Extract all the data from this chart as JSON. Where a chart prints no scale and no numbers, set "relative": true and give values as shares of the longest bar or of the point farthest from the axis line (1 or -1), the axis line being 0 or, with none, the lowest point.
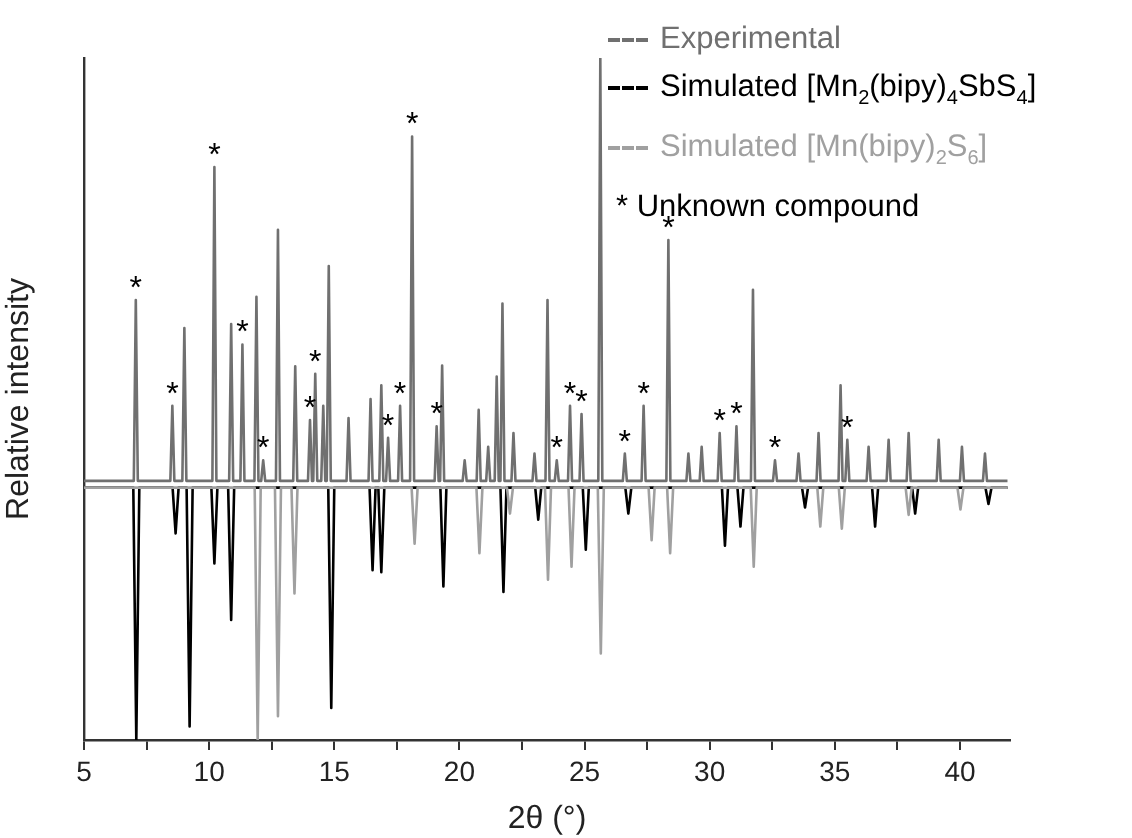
{
  "chart_data": {
    "type": "line",
    "relative": true,
    "xlabel": "2θ (°)",
    "ylabel": "Relative intensity",
    "xlim": [
      5,
      42
    ],
    "xticks": [
      5,
      {
        "value": 7.5,
        "label": null
      },
      10,
      {
        "value": 12.5,
        "label": null
      },
      15,
      {
        "value": 17.5,
        "label": null
      },
      20,
      {
        "value": 22.5,
        "label": null
      },
      25,
      {
        "value": 27.5,
        "label": null
      },
      30,
      {
        "value": 32.5,
        "label": null
      },
      35,
      {
        "value": 37.5,
        "label": null
      },
      40
    ],
    "grid": false,
    "legend": "top right",
    "marker": "none",
    "line_style": "solid",
    "series": [
      {
        "name": "Simulated [Mn(bipy)$_{2}$S$_{6}$]",
        "color": "#a0a0a0",
        "x": [
          5,
          11.82,
          11.94,
          12.06,
          12.63,
          12.75,
          12.87,
          13.29,
          13.41,
          13.53,
          18.09,
          18.21,
          18.33,
          20.68,
          20.8,
          20.92,
          21.9,
          22.02,
          22.14,
          23.42,
          23.54,
          23.66,
          24.36,
          24.48,
          24.6,
          25.53,
          25.65,
          25.77,
          27.56,
          27.68,
          27.8,
          28.3,
          28.42,
          28.54,
          31.64,
          31.76,
          31.88,
          34.3,
          34.42,
          34.54,
          35.16,
          35.28,
          35.4,
          37.83,
          37.95,
          38.07,
          39.9,
          40.02,
          40.14,
          41.9
        ],
        "values": [
          0.37,
          0.37,
          0,
          0.37,
          0.37,
          0.035,
          0.37,
          0.37,
          0.215,
          0.37,
          0.37,
          0.288,
          0.37,
          0.37,
          0.274,
          0.37,
          0.37,
          0.332,
          0.37,
          0.37,
          0.235,
          0.37,
          0.37,
          0.254,
          0.37,
          0.37,
          0.127,
          0.37,
          0.37,
          0.293,
          0.37,
          0.37,
          0.274,
          0.37,
          0.37,
          0.254,
          0.37,
          0.37,
          0.313,
          0.37,
          0.37,
          0.31,
          0.37,
          0.37,
          0.33,
          0.37,
          0.37,
          0.338,
          0.37,
          0.37
        ]
      },
      {
        "name": "Simulated [Mn$_{2}$(bipy)$_{4}$SbS$_{4}$]",
        "color": "#000000",
        "x": [
          5,
          6.97,
          7.09,
          7.21,
          8.54,
          8.66,
          8.78,
          9.1,
          9.22,
          9.34,
          10.09,
          10.21,
          10.33,
          10.76,
          10.88,
          11,
          14.76,
          14.88,
          15,
          16.41,
          16.53,
          16.65,
          16.76,
          16.88,
          17,
          19.24,
          19.36,
          19.48,
          21.64,
          21.76,
          21.88,
          23.03,
          23.15,
          23.27,
          24.93,
          25.05,
          25.17,
          26.63,
          26.75,
          26.87,
          30.49,
          30.61,
          30.73,
          31.11,
          31.23,
          31.35,
          33.69,
          33.81,
          33.93,
          36.49,
          36.61,
          36.73,
          38.09,
          38.21,
          38.33,
          41.02,
          41.14,
          41.26,
          41.9
        ],
        "values": [
          0.37,
          0.37,
          0,
          0.37,
          0.37,
          0.303,
          0.37,
          0.37,
          0.02,
          0.37,
          0.37,
          0.259,
          0.37,
          0.37,
          0.176,
          0.37,
          0.37,
          0.047,
          0.37,
          0.37,
          0.249,
          0.37,
          0.37,
          0.246,
          0.37,
          0.37,
          0.225,
          0.37,
          0.37,
          0.217,
          0.37,
          0.37,
          0.323,
          0.37,
          0.37,
          0.279,
          0.37,
          0.37,
          0.332,
          0.37,
          0.37,
          0.285,
          0.37,
          0.37,
          0.313,
          0.37,
          0.37,
          0.341,
          0.37,
          0.37,
          0.313,
          0.37,
          0.37,
          0.332,
          0.37,
          0.37,
          0.346,
          0.37,
          0.37
        ]
      },
      {
        "name": "Experimental",
        "color": "#707070",
        "x": [
          5,
          6.99,
          7.07,
          7.15,
          8.45,
          8.53,
          8.61,
          8.93,
          9.01,
          9.09,
          10.13,
          10.21,
          10.29,
          10.8,
          10.88,
          10.96,
          11.25,
          11.33,
          11.41,
          11.81,
          11.89,
          11.97,
          12.08,
          12.16,
          12.24,
          12.67,
          12.75,
          12.83,
          13.36,
          13.44,
          13.52,
          13.95,
          14.03,
          14.11,
          14.16,
          14.24,
          14.32,
          14.48,
          14.56,
          14.64,
          14.7,
          14.78,
          14.86,
          15.49,
          15.57,
          15.65,
          16.37,
          16.45,
          16.53,
          16.8,
          16.88,
          16.96,
          17.07,
          17.15,
          17.23,
          17.55,
          17.63,
          17.71,
          18.03,
          18.11,
          18.19,
          19.01,
          19.09,
          19.17,
          19.23,
          19.31,
          19.39,
          20.13,
          20.21,
          20.29,
          20.69,
          20.77,
          20.85,
          21.07,
          21.15,
          21.23,
          21.41,
          21.49,
          21.57,
          21.64,
          21.72,
          21.8,
          22.08,
          22.16,
          22.24,
          22.92,
          23,
          23.08,
          23.44,
          23.52,
          23.6,
          23.81,
          23.89,
          23.97,
          24.34,
          24.42,
          24.5,
          24.8,
          24.88,
          24.96,
          25.55,
          25.63,
          25.71,
          26.53,
          26.61,
          26.69,
          27.28,
          27.36,
          27.44,
          28.27,
          28.35,
          28.43,
          29.07,
          29.15,
          29.23,
          29.6,
          29.68,
          29.76,
          30.32,
          30.4,
          30.48,
          30.99,
          31.07,
          31.15,
          31.65,
          31.73,
          31.81,
          32.53,
          32.61,
          32.69,
          33.47,
          33.55,
          33.63,
          34.27,
          34.35,
          34.43,
          35.15,
          35.23,
          35.31,
          35.42,
          35.5,
          35.58,
          36.27,
          36.35,
          36.43,
          37.07,
          37.15,
          37.23,
          37.87,
          37.95,
          38.03,
          39.07,
          39.15,
          39.23,
          40,
          40.08,
          40.16,
          40.92,
          41,
          41.08,
          41.9
        ],
        "values": [
          0.38,
          0.38,
          0.645,
          0.38,
          0.38,
          0.49,
          0.38,
          0.38,
          0.604,
          0.38,
          0.38,
          0.84,
          0.38,
          0.38,
          0.61,
          0.38,
          0.38,
          0.58,
          0.38,
          0.38,
          0.65,
          0.38,
          0.38,
          0.41,
          0.38,
          0.38,
          0.748,
          0.38,
          0.38,
          0.548,
          0.38,
          0.38,
          0.469,
          0.38,
          0.38,
          0.537,
          0.38,
          0.38,
          0.49,
          0.38,
          0.38,
          0.695,
          0.38,
          0.38,
          0.472,
          0.38,
          0.38,
          0.5,
          0.38,
          0.38,
          0.52,
          0.38,
          0.38,
          0.443,
          0.38,
          0.38,
          0.49,
          0.38,
          0.38,
          0.885,
          0.38,
          0.38,
          0.46,
          0.38,
          0.38,
          0.549,
          0.38,
          0.38,
          0.41,
          0.38,
          0.38,
          0.484,
          0.38,
          0.38,
          0.43,
          0.38,
          0.38,
          0.533,
          0.38,
          0.38,
          0.64,
          0.38,
          0.38,
          0.45,
          0.38,
          0.38,
          0.42,
          0.38,
          0.38,
          0.645,
          0.38,
          0.38,
          0.41,
          0.38,
          0.38,
          0.49,
          0.38,
          0.38,
          0.478,
          0.38,
          0.38,
          1,
          0.38,
          0.38,
          0.42,
          0.38,
          0.38,
          0.49,
          0.38,
          0.38,
          0.733,
          0.38,
          0.38,
          0.42,
          0.38,
          0.38,
          0.43,
          0.38,
          0.38,
          0.45,
          0.38,
          0.38,
          0.46,
          0.38,
          0.38,
          0.66,
          0.38,
          0.38,
          0.41,
          0.38,
          0.38,
          0.42,
          0.38,
          0.38,
          0.45,
          0.38,
          0.38,
          0.52,
          0.38,
          0.38,
          0.44,
          0.38,
          0.38,
          0.43,
          0.38,
          0.38,
          0.44,
          0.38,
          0.38,
          0.45,
          0.38,
          0.38,
          0.44,
          0.38,
          0.38,
          0.43,
          0.38,
          0.38,
          0.42,
          0.38,
          0.38
        ]
      }
    ],
    "annotations": [
      "* Unknown compound",
      {
        "text": "*",
        "x": 7.07,
        "y": 0.645
      },
      {
        "text": "*",
        "x": 8.53,
        "y": 0.49
      },
      {
        "text": "*",
        "x": 10.21,
        "y": 0.84
      },
      {
        "text": "*",
        "x": 11.33,
        "y": 0.58
      },
      {
        "text": "*",
        "x": 12.16,
        "y": 0.41
      },
      {
        "text": "*",
        "x": 14.03,
        "y": 0.469
      },
      {
        "text": "*",
        "x": 14.24,
        "y": 0.537
      },
      {
        "text": "*",
        "x": 17.15,
        "y": 0.443
      },
      {
        "text": "*",
        "x": 17.63,
        "y": 0.49
      },
      {
        "text": "*",
        "x": 18.11,
        "y": 0.885
      },
      {
        "text": "*",
        "x": 19.09,
        "y": 0.46
      },
      {
        "text": "*",
        "x": 23.89,
        "y": 0.41
      },
      {
        "text": "*",
        "x": 24.42,
        "y": 0.49
      },
      {
        "text": "*",
        "x": 24.88,
        "y": 0.478
      },
      {
        "text": "*",
        "x": 26.61,
        "y": 0.42
      },
      {
        "text": "*",
        "x": 27.36,
        "y": 0.49
      },
      {
        "text": "*",
        "x": 28.35,
        "y": 0.733
      },
      {
        "text": "*",
        "x": 30.4,
        "y": 0.45
      },
      {
        "text": "*",
        "x": 31.07,
        "y": 0.46
      },
      {
        "text": "*",
        "x": 32.61,
        "y": 0.41
      },
      {
        "text": "*",
        "x": 35.5,
        "y": 0.44
      }
    ]
  }
}
